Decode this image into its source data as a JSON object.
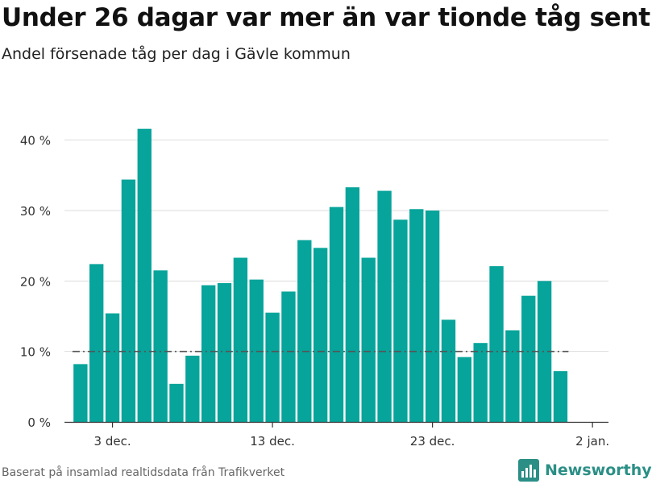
{
  "header": {
    "title": "Under 26 dagar var mer än var tionde tåg sent",
    "subtitle": "Andel försenade tåg per dag i Gävle kommun"
  },
  "footer": {
    "source": "Baserat på insamlad realtidsdata från Trafikverket",
    "brand": "Newsworthy"
  },
  "colors": {
    "bar": "#06a49a",
    "reference_line": "#555555",
    "grid": "#dddddd",
    "brand": "#2b8f86"
  },
  "chart_data": {
    "type": "bar",
    "title": "Under 26 dagar var mer än var tionde tåg sent",
    "subtitle": "Andel försenade tåg per dag i Gävle kommun",
    "xlabel": "",
    "ylabel": "",
    "x": [
      "2024-12-01",
      "2024-12-02",
      "2024-12-03",
      "2024-12-04",
      "2024-12-05",
      "2024-12-06",
      "2024-12-07",
      "2024-12-08",
      "2024-12-09",
      "2024-12-10",
      "2024-12-11",
      "2024-12-12",
      "2024-12-13",
      "2024-12-14",
      "2024-12-15",
      "2024-12-16",
      "2024-12-17",
      "2024-12-18",
      "2024-12-19",
      "2024-12-20",
      "2024-12-21",
      "2024-12-22",
      "2024-12-23",
      "2024-12-24",
      "2024-12-25",
      "2024-12-26",
      "2024-12-27",
      "2024-12-28",
      "2024-12-29",
      "2024-12-30",
      "2024-12-31"
    ],
    "values": [
      8.2,
      22.4,
      15.4,
      34.4,
      41.6,
      21.5,
      5.4,
      9.4,
      19.4,
      19.7,
      23.3,
      20.2,
      15.5,
      18.5,
      25.8,
      24.7,
      30.5,
      33.3,
      23.3,
      32.8,
      28.7,
      30.2,
      30.0,
      14.5,
      9.2,
      11.2,
      22.1,
      13.0,
      17.9,
      20.0,
      7.2
    ],
    "unit": "%",
    "ylim": [
      0,
      45
    ],
    "xlim": [
      "2024-11-30",
      "2025-01-03"
    ],
    "y_ticks": [
      0,
      10,
      20,
      30,
      40
    ],
    "y_tick_labels": [
      "0 %",
      "10 %",
      "20 %",
      "30 %",
      "40 %"
    ],
    "x_ticks": [
      "2024-12-03",
      "2024-12-13",
      "2024-12-23",
      "2025-01-02"
    ],
    "x_tick_labels": [
      "3 dec.",
      "13 dec.",
      "23 dec.",
      "2 jan."
    ],
    "reference_line": 10,
    "grid": "horizontal"
  }
}
